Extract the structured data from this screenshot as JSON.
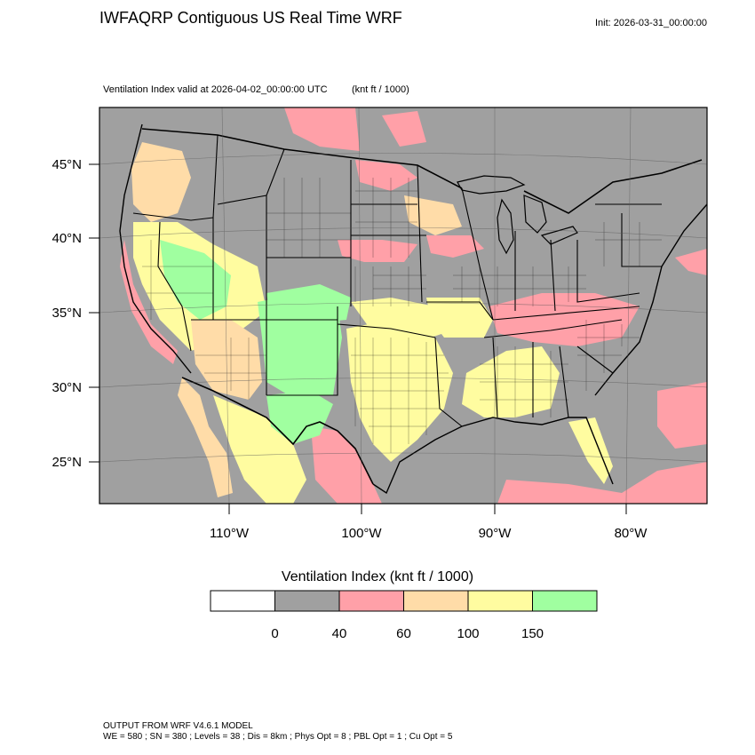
{
  "title": "IWFAQRP Contiguous US Real Time WRF",
  "init_label": "Init: 2026-03-31_00:00:00",
  "subtitle": "Ventilation Index valid at 2026-04-02_00:00:00 UTC",
  "subtitle_units": "(knt ft / 1000)",
  "lat_labels": [
    "45°N",
    "40°N",
    "35°N",
    "30°N",
    "25°N"
  ],
  "lon_labels": [
    "110°W",
    "100°W",
    "90°W",
    "80°W"
  ],
  "colorbar": {
    "title": "Ventilation Index  (knt ft / 1000)",
    "labels": [
      "0",
      "40",
      "60",
      "100",
      "150"
    ],
    "colors": [
      "#ffffff",
      "#a0a0a0",
      "#ffa0a8",
      "#ffdca8",
      "#fffca0",
      "#a0ffa0"
    ]
  },
  "map_colors": {
    "ocean": "#a0a0a0",
    "land_gray": "#a0a0a0",
    "pink": "#ffa0a8",
    "orange": "#ffdca8",
    "yellow": "#fffca0",
    "green": "#a0ffa0"
  },
  "footer": {
    "line1": "OUTPUT FROM WRF V4.6.1 MODEL",
    "line2": "WE = 580 ; SN = 380 ; Levels = 38 ; Dis = 8km ; Phys Opt = 8 ; PBL Opt = 1 ; Cu Opt = 5"
  }
}
